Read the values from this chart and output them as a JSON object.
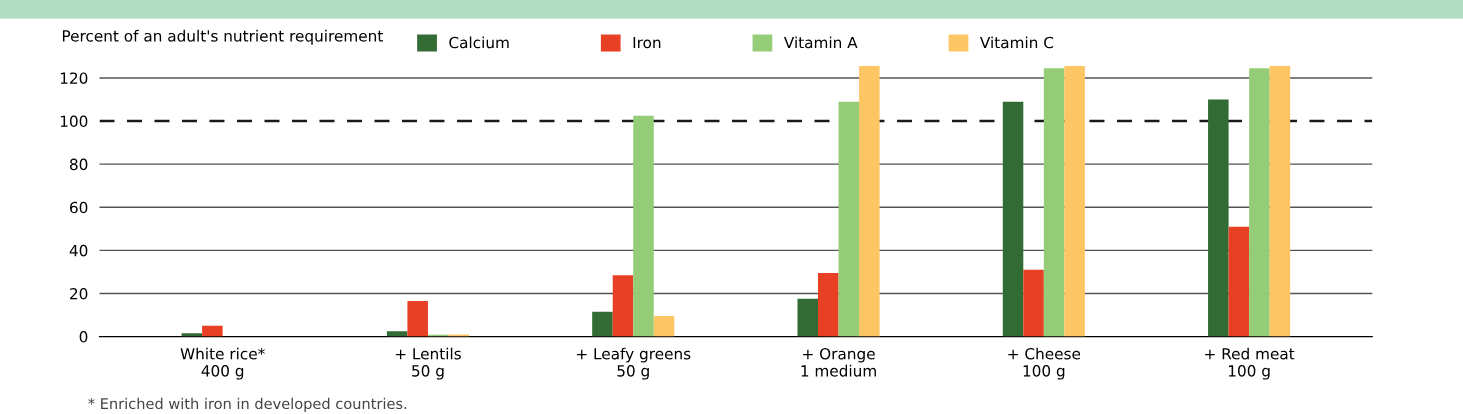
{
  "chart_data": {
    "type": "bar",
    "ylabel": "Percent of an adult's nutrient requirement",
    "categories": [
      "White rice*\n400 g",
      "+ Lentils\n50 g",
      "+ Leafy greens\n50 g",
      "+ Orange\n1 medium",
      "+ Cheese\n100 g",
      "+ Red meat\n100 g"
    ],
    "series": [
      {
        "name": "Calcium",
        "color": "#336b35",
        "values": [
          1.5,
          2.5,
          11.5,
          17.5,
          109,
          110
        ]
      },
      {
        "name": "Iron",
        "color": "#e84025",
        "values": [
          5,
          16.5,
          28.5,
          29.5,
          31,
          51
        ]
      },
      {
        "name": "Vitamin A",
        "color": "#94cc77",
        "values": [
          0,
          0.8,
          102.5,
          109,
          124.5,
          124.5
        ]
      },
      {
        "name": "Vitamin C",
        "color": "#fdc564",
        "values": [
          0,
          1,
          9.5,
          125.5,
          125.5,
          125.5
        ]
      }
    ],
    "ylim": [
      0,
      126
    ],
    "yticks": [
      0,
      20,
      40,
      60,
      80,
      100,
      120
    ],
    "grid": "y",
    "legend": "top",
    "ref_lines": [
      {
        "axis": "y",
        "value": 100,
        "line_style": "dashed",
        "color": "#1a1a1a"
      }
    ],
    "annotations": [
      "* Enriched with iron in developed countries."
    ]
  }
}
